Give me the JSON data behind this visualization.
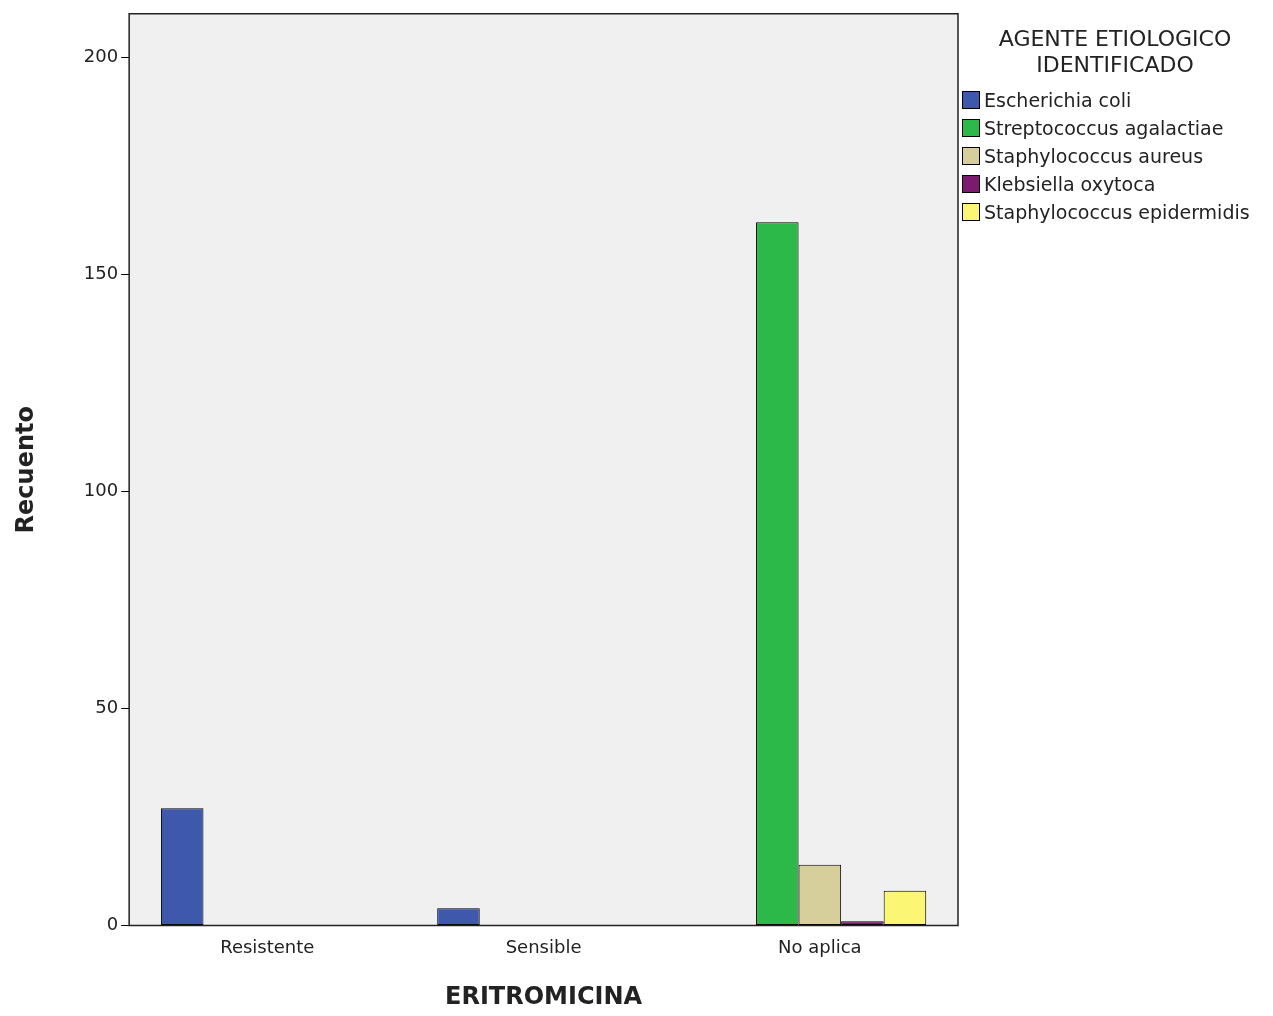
{
  "chart_data": {
    "type": "bar",
    "xlabel": "ERITROMICINA",
    "ylabel": "Recuento",
    "legend_title": "AGENTE ETIOLOGICO IDENTIFICADO",
    "categories": [
      "Resistente",
      "Sensible",
      "No aplica"
    ],
    "series": [
      {
        "name": "Escherichia coli",
        "color": "#3e58ac",
        "values": [
          27,
          4,
          0
        ]
      },
      {
        "name": "Streptococcus agalactiae",
        "color": "#2db84a",
        "values": [
          0,
          0,
          162
        ]
      },
      {
        "name": "Staphylococcus aureus",
        "color": "#d6cf9c",
        "values": [
          0,
          0,
          14
        ]
      },
      {
        "name": "Klebsiella oxytoca",
        "color": "#7b1a6e",
        "values": [
          0,
          0,
          1
        ]
      },
      {
        "name": "Staphylococcus epidermidis",
        "color": "#fbf774",
        "values": [
          0,
          0,
          8
        ]
      }
    ],
    "ylim": [
      0,
      210
    ],
    "yticks": [
      0,
      50,
      100,
      150,
      200
    ],
    "grid": false,
    "legend": "top right"
  }
}
